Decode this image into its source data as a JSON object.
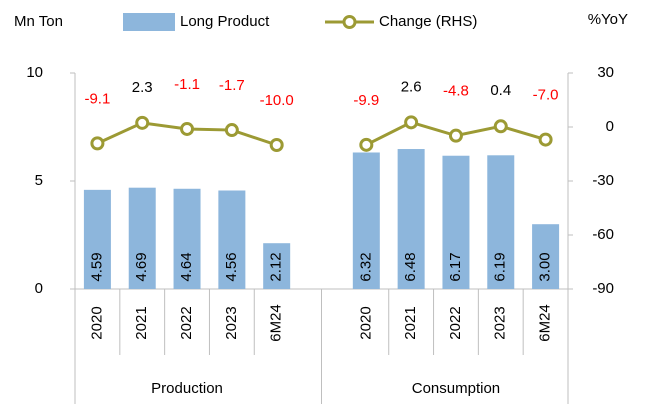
{
  "chart_data": {
    "type": "bar",
    "ylabel": "Mn Ton",
    "y2label": "%YoY",
    "categories": [
      "2020",
      "2021",
      "2022",
      "2023",
      "6M24",
      null,
      "2020",
      "2021",
      "2022",
      "2023",
      "6M24"
    ],
    "group_labels": [
      "Production",
      "Consumption"
    ],
    "series": [
      {
        "name": "Long Product",
        "type": "bar",
        "color": "#8db6dc",
        "values": [
          4.59,
          4.69,
          4.64,
          4.56,
          2.12,
          null,
          6.32,
          6.48,
          6.17,
          6.19,
          3.0
        ],
        "value_labels": [
          "4.59",
          "4.69",
          "4.64",
          "4.56",
          "2.12",
          null,
          "6.32",
          "6.48",
          "6.17",
          "6.19",
          "3.00"
        ]
      },
      {
        "name": "Change (RHS)",
        "type": "line",
        "axis": "y2",
        "color": "#9c9a34",
        "values": [
          -9.1,
          2.3,
          -1.1,
          -1.7,
          -10.0,
          null,
          -9.9,
          2.6,
          -4.8,
          0.4,
          -7.0
        ],
        "value_labels": [
          "-9.1",
          "2.3",
          "-1.1",
          "-1.7",
          "-10.0",
          null,
          "-9.9",
          "2.6",
          "-4.8",
          "0.4",
          "-7.0"
        ]
      }
    ],
    "ylim": [
      0,
      10
    ],
    "yticks": [
      0,
      5,
      10
    ],
    "y2lim": [
      -90,
      30
    ],
    "y2ticks": [
      -90,
      -60,
      -30,
      0,
      30
    ],
    "negative_label_color": "#ff0000",
    "legend": "top",
    "grid": false
  }
}
